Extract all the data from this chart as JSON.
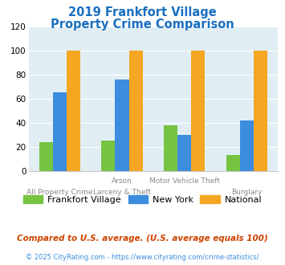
{
  "title_line1": "2019 Frankfort Village",
  "title_line2": "Property Crime Comparison",
  "title_color": "#1A6FBF",
  "x_labels_top": [
    "",
    "Arson",
    "Motor Vehicle Theft",
    ""
  ],
  "x_labels_bottom": [
    "All Property Crime",
    "Larceny & Theft",
    "",
    "Burglary"
  ],
  "frankfort_values": [
    24,
    25,
    38,
    13
  ],
  "newyork_values": [
    65,
    76,
    30,
    42
  ],
  "national_values": [
    100,
    100,
    100,
    100
  ],
  "frankfort_color": "#76C442",
  "newyork_color": "#3C8DDE",
  "national_color": "#F5A623",
  "ylim": [
    0,
    120
  ],
  "yticks": [
    0,
    20,
    40,
    60,
    80,
    100,
    120
  ],
  "plot_bg_color": "#E0EEF4",
  "legend_labels": [
    "Frankfort Village",
    "New York",
    "National"
  ],
  "footnote1": "Compared to U.S. average. (U.S. average equals 100)",
  "footnote2": "© 2025 CityRating.com - https://www.cityrating.com/crime-statistics/",
  "footnote1_color": "#CC4400",
  "footnote2_color": "#3C8DDE",
  "bar_width": 0.22
}
